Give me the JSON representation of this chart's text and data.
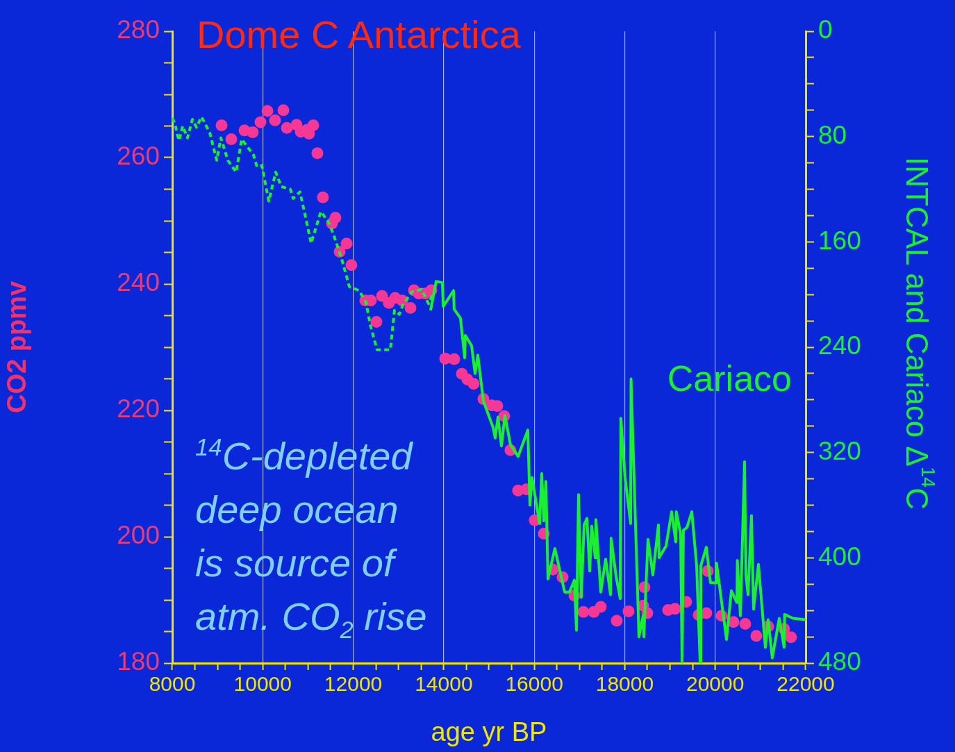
{
  "chart_data": {
    "type": "scatter",
    "title": "Dome C Antarctica",
    "xlabel": "age yr BP",
    "ylabel": "CO2 ppmv",
    "y2label": "INTCAL and Cariaco Δ$^{14}$C",
    "annotations": [
      "$^{14}$C-depleted\ndeep ocean\nis source of\natm. CO$_{2}$ rise"
    ],
    "grid": "x",
    "xlim": [
      8000,
      22000
    ],
    "xticks": [
      8000,
      {
        "value": 8500,
        "label": null
      },
      {
        "value": 9000,
        "label": null
      },
      {
        "value": 9500,
        "label": null
      },
      10000,
      {
        "value": 10500,
        "label": null
      },
      {
        "value": 11000,
        "label": null
      },
      {
        "value": 11500,
        "label": null
      },
      12000,
      {
        "value": 12500,
        "label": null
      },
      {
        "value": 13000,
        "label": null
      },
      {
        "value": 13500,
        "label": null
      },
      14000,
      {
        "value": 14500,
        "label": null
      },
      {
        "value": 15000,
        "label": null
      },
      {
        "value": 15500,
        "label": null
      },
      16000,
      {
        "value": 16500,
        "label": null
      },
      {
        "value": 17000,
        "label": null
      },
      {
        "value": 17500,
        "label": null
      },
      18000,
      {
        "value": 18500,
        "label": null
      },
      {
        "value": 19000,
        "label": null
      },
      {
        "value": 19500,
        "label": null
      },
      20000,
      {
        "value": 20500,
        "label": null
      },
      {
        "value": 21000,
        "label": null
      },
      {
        "value": 21500,
        "label": null
      },
      22000
    ],
    "ylim": [
      180,
      280
    ],
    "yticks": [
      180,
      {
        "value": 185,
        "label": null
      },
      {
        "value": 190,
        "label": null
      },
      {
        "value": 195,
        "label": null
      },
      200,
      {
        "value": 205,
        "label": null
      },
      {
        "value": 210,
        "label": null
      },
      {
        "value": 215,
        "label": null
      },
      220,
      {
        "value": 225,
        "label": null
      },
      {
        "value": 230,
        "label": null
      },
      {
        "value": 235,
        "label": null
      },
      240,
      {
        "value": 245,
        "label": null
      },
      {
        "value": 250,
        "label": null
      },
      {
        "value": 255,
        "label": null
      },
      260,
      {
        "value": 265,
        "label": null
      },
      {
        "value": 270,
        "label": null
      },
      {
        "value": 275,
        "label": null
      },
      280
    ],
    "y2lim": [
      480,
      0
    ],
    "y2ticks": [
      0,
      {
        "value": 20,
        "label": null
      },
      {
        "value": 40,
        "label": null
      },
      {
        "value": 60,
        "label": null
      },
      80,
      {
        "value": 100,
        "label": null
      },
      {
        "value": 120,
        "label": null
      },
      {
        "value": 140,
        "label": null
      },
      160,
      {
        "value": 180,
        "label": null
      },
      {
        "value": 200,
        "label": null
      },
      {
        "value": 220,
        "label": null
      },
      240,
      {
        "value": 260,
        "label": null
      },
      {
        "value": 280,
        "label": null
      },
      {
        "value": 300,
        "label": null
      },
      320,
      {
        "value": 340,
        "label": null
      },
      {
        "value": 360,
        "label": null
      },
      {
        "value": 380,
        "label": null
      },
      400,
      {
        "value": 420,
        "label": null
      },
      {
        "value": 440,
        "label": null
      },
      {
        "value": 460,
        "label": null
      },
      480
    ],
    "series": [
      {
        "type": "scatter",
        "marker": "circle",
        "color": "#f53796",
        "x": [
          9090,
          9305,
          9597,
          9780,
          9950,
          10103,
          10272,
          10456,
          10533,
          10748,
          10840,
          10978,
          11024,
          11116,
          11208,
          11330,
          11530,
          11606,
          11700,
          11853,
          11960,
          12267,
          12390,
          12513,
          12636,
          12789,
          12927,
          13081,
          13265,
          13342,
          13449,
          13587,
          13726,
          14033,
          14232,
          14401,
          14524,
          14662,
          14877,
          15061,
          15184,
          15337,
          15475,
          15644,
          15828,
          16012,
          16212,
          16412,
          16627,
          16888,
          17088,
          17318,
          17471,
          17824,
          18085,
          18407,
          18438,
          18500,
          18960,
          19114,
          19359,
          19635,
          19804,
          19835,
          20142,
          20403,
          20664,
          20909,
          21170,
          21523,
          21677
        ],
        "values": [
          265.1,
          262.9,
          264.3,
          264.0,
          265.6,
          267.4,
          265.9,
          267.5,
          264.7,
          265.2,
          264.1,
          264.4,
          263.8,
          265.1,
          260.7,
          253.7,
          249.6,
          250.5,
          245.1,
          246.4,
          243.0,
          237.4,
          237.4,
          234.0,
          238.1,
          237.0,
          237.8,
          237.4,
          236.2,
          239.0,
          238.5,
          238.5,
          239.0,
          228.2,
          228.1,
          225.8,
          224.9,
          224.2,
          221.8,
          220.8,
          220.7,
          219.1,
          213.7,
          207.3,
          207.5,
          202.6,
          200.5,
          194.8,
          193.6,
          190.7,
          188.1,
          188.1,
          188.9,
          186.7,
          188.2,
          189.1,
          192.0,
          187.9,
          188.4,
          188.6,
          189.7,
          187.6,
          187.9,
          194.6,
          187.5,
          186.5,
          186.2,
          184.3,
          185.8,
          185.4,
          184.1
        ]
      },
      {
        "type": "line",
        "axis": "y2",
        "marker": "none",
        "line_style": "dotted",
        "color": "#19f02e",
        "x": [
          8000,
          8060,
          8107,
          8153,
          8230,
          8337,
          8445,
          8537,
          8645,
          8829,
          8983,
          9075,
          9228,
          9412,
          9535,
          9796,
          9873,
          9980,
          10134,
          10287,
          10410,
          10610,
          10671,
          10824,
          11070,
          11285,
          11454,
          11561,
          11745,
          11914,
          12129,
          12283,
          12375,
          12528,
          12820,
          12912,
          13020,
          13096,
          13296,
          13511,
          13664,
          13760
        ],
        "values": [
          66,
          70,
          78,
          83,
          72,
          81,
          67,
          73,
          65,
          77,
          98,
          81,
          98,
          107,
          82,
          94,
          103,
          102,
          129,
          107,
          118,
          120,
          127,
          122,
          161,
          137,
          145,
          154,
          173,
          194,
          197,
          206,
          223,
          242,
          242,
          212,
          215,
          208,
          198,
          196,
          207,
          199
        ]
      },
      {
        "type": "line",
        "axis": "y2",
        "marker": "none",
        "line_style": "solid",
        "name": "Cariaco",
        "color": "#19f02e",
        "x": [
          13710,
          13833,
          13971,
          13990,
          14217,
          14230,
          14370,
          14462,
          14478,
          14616,
          14693,
          14754,
          14877,
          15092,
          15138,
          15200,
          15276,
          15353,
          15475,
          15644,
          15751,
          15859,
          15905,
          15951,
          16120,
          16166,
          16212,
          16258,
          16304,
          16457,
          16673,
          16780,
          16888,
          16934,
          16980,
          17041,
          17103,
          17165,
          17226,
          17272,
          17349,
          17364,
          17471,
          17579,
          17686,
          17700,
          17809,
          17901,
          17915,
          18008,
          18131,
          18140,
          18315,
          18407,
          18423,
          18515,
          18622,
          18745,
          18760,
          18914,
          19037,
          19129,
          19140,
          19237,
          19268,
          19298,
          19375,
          19483,
          19590,
          19667,
          19682,
          19804,
          19897,
          20020,
          20030,
          20250,
          20358,
          20480,
          20490,
          20557,
          20649,
          20680,
          20726,
          20802,
          20848,
          20956,
          21109,
          21170,
          21262,
          21416,
          21523,
          21535,
          21723,
          22000
        ],
        "values": [
          212,
          190,
          191,
          209,
          197,
          211,
          218,
          248,
          231,
          239,
          260,
          246,
          281,
          301,
          309,
          293,
          315,
          292,
          314,
          323,
          313,
          303,
          360,
          339,
          374,
          336,
          372,
          342,
          416,
          393,
          426,
          426,
          417,
          455,
          352,
          430,
          375,
          370,
          410,
          376,
          400,
          371,
          426,
          401,
          428,
          385,
          414,
          431,
          294,
          339,
          374,
          264,
          460,
          444,
          460,
          386,
          413,
          375,
          400,
          391,
          365,
          388,
          365,
          382,
          480,
          379,
          377,
          365,
          406,
          480,
          406,
          392,
          419,
          419,
          404,
          462,
          425,
          434,
          402,
          444,
          327,
          413,
          428,
          368,
          439,
          405,
          468,
          447,
          476,
          446,
          468,
          443,
          446,
          447
        ]
      }
    ]
  }
}
